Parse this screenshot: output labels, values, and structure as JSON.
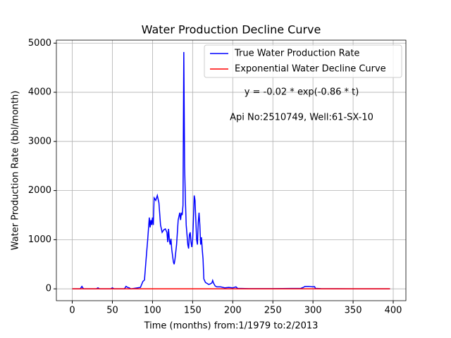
{
  "chart_data": {
    "type": "line",
    "title": "Water Production Decline Curve",
    "xlabel": "Time (months) from:1/1979 to:2/2013",
    "ylabel": "Water Production Rate (bbl/month)",
    "annotations": [
      "y = -0.02 * exp(-0.86 * t)",
      "Api No:2510749, Well:61-SX-10"
    ],
    "series": [
      {
        "name": "True Water Production Rate",
        "color": "#0000ff",
        "x": [
          0,
          10,
          12,
          14,
          30,
          32,
          34,
          48,
          50,
          52,
          65,
          67,
          69,
          71,
          73,
          85,
          88,
          90,
          92,
          94,
          96,
          97,
          98,
          99,
          100,
          101,
          102,
          104,
          106,
          108,
          110,
          112,
          114,
          116,
          118,
          119,
          120,
          121,
          122,
          123,
          124,
          126,
          127,
          128,
          130,
          132,
          134,
          135,
          136,
          137,
          138,
          139,
          140,
          141,
          142,
          143,
          144,
          145,
          146,
          147,
          148,
          149,
          150,
          151,
          152,
          153,
          154,
          155,
          156,
          157,
          158,
          159,
          160,
          161,
          162,
          163,
          164,
          166,
          168,
          170,
          172,
          174,
          175,
          176,
          178,
          180,
          185,
          190,
          195,
          200,
          204,
          206,
          220,
          250,
          285,
          288,
          290,
          295,
          300,
          302,
          303,
          310,
          350,
          396
        ],
        "values": [
          0,
          0,
          50,
          0,
          0,
          20,
          0,
          0,
          20,
          0,
          0,
          50,
          30,
          20,
          0,
          30,
          150,
          180,
          600,
          1000,
          1450,
          1250,
          1400,
          1300,
          1450,
          1300,
          1850,
          1800,
          1900,
          1750,
          1300,
          1150,
          1200,
          1220,
          1150,
          950,
          1220,
          1000,
          900,
          1020,
          800,
          550,
          500,
          600,
          900,
          1400,
          1550,
          1400,
          1550,
          1500,
          1700,
          4820,
          2500,
          1800,
          1300,
          1100,
          900,
          820,
          1100,
          1150,
          950,
          850,
          1000,
          1400,
          1900,
          1800,
          1400,
          1000,
          900,
          1350,
          1550,
          1300,
          900,
          1050,
          800,
          600,
          200,
          130,
          110,
          90,
          100,
          120,
          170,
          120,
          60,
          40,
          40,
          20,
          30,
          20,
          40,
          10,
          5,
          5,
          10,
          30,
          50,
          50,
          40,
          45,
          10,
          5,
          0,
          0
        ]
      },
      {
        "name": "Exponential Water Decline Curve",
        "color": "#ff0000",
        "x": [
          0,
          396
        ],
        "values": [
          -0.02,
          0
        ]
      }
    ],
    "xlim": [
      -19.8,
      415.8
    ],
    "xticks": [
      0,
      50,
      100,
      150,
      200,
      250,
      300,
      350,
      400
    ],
    "ylim": [
      -241,
      5061
    ],
    "yticks": [
      0,
      1000,
      2000,
      3000,
      4000,
      5000
    ],
    "grid": true,
    "legend": "upper right"
  }
}
